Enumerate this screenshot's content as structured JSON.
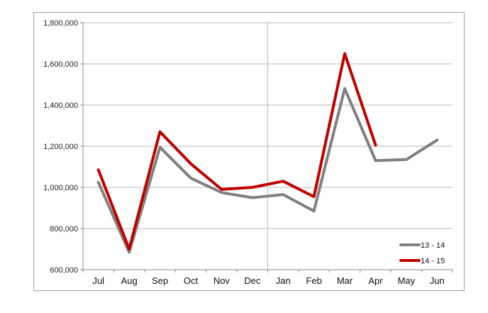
{
  "chart_data": {
    "type": "line",
    "categories": [
      "Jul",
      "Aug",
      "Sep",
      "Oct",
      "Nov",
      "Dec",
      "Jan",
      "Feb",
      "Mar",
      "Apr",
      "May",
      "Jun"
    ],
    "ylim": [
      600000,
      1800000
    ],
    "y_ticks": [
      600000,
      800000,
      1000000,
      1200000,
      1400000,
      1600000,
      1800000
    ],
    "y_tick_labels": [
      "600,000",
      "800,000",
      "1,000,000",
      "1,200,000",
      "1,400,000",
      "1,600,000",
      "1,800,000"
    ],
    "grid": "horizontal gridlines plus one vertical divider before Jan",
    "legend_position": "bottom-right",
    "series": [
      {
        "name": "13 - 14",
        "color": "#808080",
        "values": [
          1025000,
          685000,
          1195000,
          1045000,
          975000,
          950000,
          965000,
          885000,
          1480000,
          1130000,
          1135000,
          1230000
        ]
      },
      {
        "name": "14 - 15",
        "color": "#c00000",
        "values": [
          1085000,
          700000,
          1270000,
          1115000,
          990000,
          1000000,
          1030000,
          955000,
          1650000,
          1205000,
          null,
          null
        ]
      }
    ]
  }
}
